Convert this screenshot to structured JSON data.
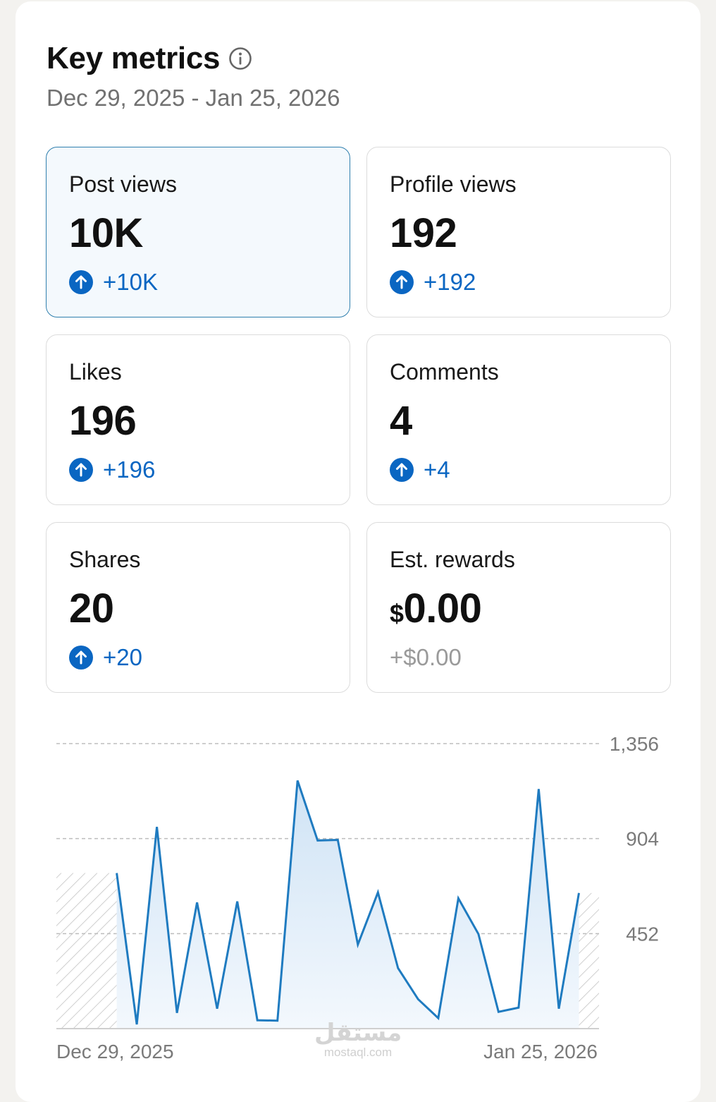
{
  "header": {
    "title": "Key metrics",
    "date_range": "Dec 29, 2025 - Jan 25, 2026"
  },
  "icons": {
    "info": "info-icon",
    "up": "arrow-up-circle-icon"
  },
  "colors": {
    "accent": "#0a66c2",
    "selected_border": "#2f7fae",
    "selected_bg": "#f4f9fd",
    "line": "#1f7bc0"
  },
  "metrics": [
    {
      "label": "Post views",
      "value": "10K",
      "change": "+10K",
      "selected": true
    },
    {
      "label": "Profile views",
      "value": "192",
      "change": "+192"
    },
    {
      "label": "Likes",
      "value": "196",
      "change": "+196"
    },
    {
      "label": "Comments",
      "value": "4",
      "change": "+4"
    },
    {
      "label": "Shares",
      "value": "20",
      "change": "+20"
    },
    {
      "label": "Est. rewards",
      "currency": "$",
      "value": "0.00",
      "change": "+$0.00"
    }
  ],
  "chart_data": {
    "type": "area",
    "series_metric": "Post views",
    "x_start_label": "Dec 29, 2025",
    "x_end_label": "Jan 25, 2026",
    "y_ticks": [
      {
        "value": 1356,
        "label": "1,356"
      },
      {
        "value": 904,
        "label": "904"
      },
      {
        "value": 452,
        "label": "452"
      }
    ],
    "ylim": [
      0,
      1356
    ],
    "x": [
      "Dec 29, 2025",
      "Dec 30, 2025",
      "Dec 31, 2025",
      "Jan 1, 2026",
      "Jan 2, 2026",
      "Jan 3, 2026",
      "Jan 4, 2026",
      "Jan 5, 2026",
      "Jan 6, 2026",
      "Jan 7, 2026",
      "Jan 8, 2026",
      "Jan 9, 2026",
      "Jan 10, 2026",
      "Jan 11, 2026",
      "Jan 12, 2026",
      "Jan 13, 2026",
      "Jan 14, 2026",
      "Jan 15, 2026",
      "Jan 16, 2026",
      "Jan 17, 2026",
      "Jan 18, 2026",
      "Jan 19, 2026",
      "Jan 20, 2026",
      "Jan 21, 2026",
      "Jan 22, 2026",
      "Jan 23, 2026",
      "Jan 24, 2026",
      "Jan 25, 2026"
    ],
    "values": [
      null,
      null,
      null,
      740,
      20,
      960,
      75,
      600,
      95,
      605,
      40,
      38,
      1180,
      895,
      898,
      400,
      648,
      288,
      140,
      50,
      620,
      450,
      80,
      100,
      1140,
      95,
      645,
      null
    ],
    "hatched_ranges": [
      {
        "from": "Dec 29, 2025",
        "to": "Jan 1, 2026"
      },
      {
        "from": "Jan 24, 2026",
        "to": "Jan 25, 2026"
      }
    ],
    "grid": "dashed-horizontal",
    "legend": "none"
  },
  "watermark": {
    "logo": "مستقل",
    "text": "mostaql.com"
  }
}
